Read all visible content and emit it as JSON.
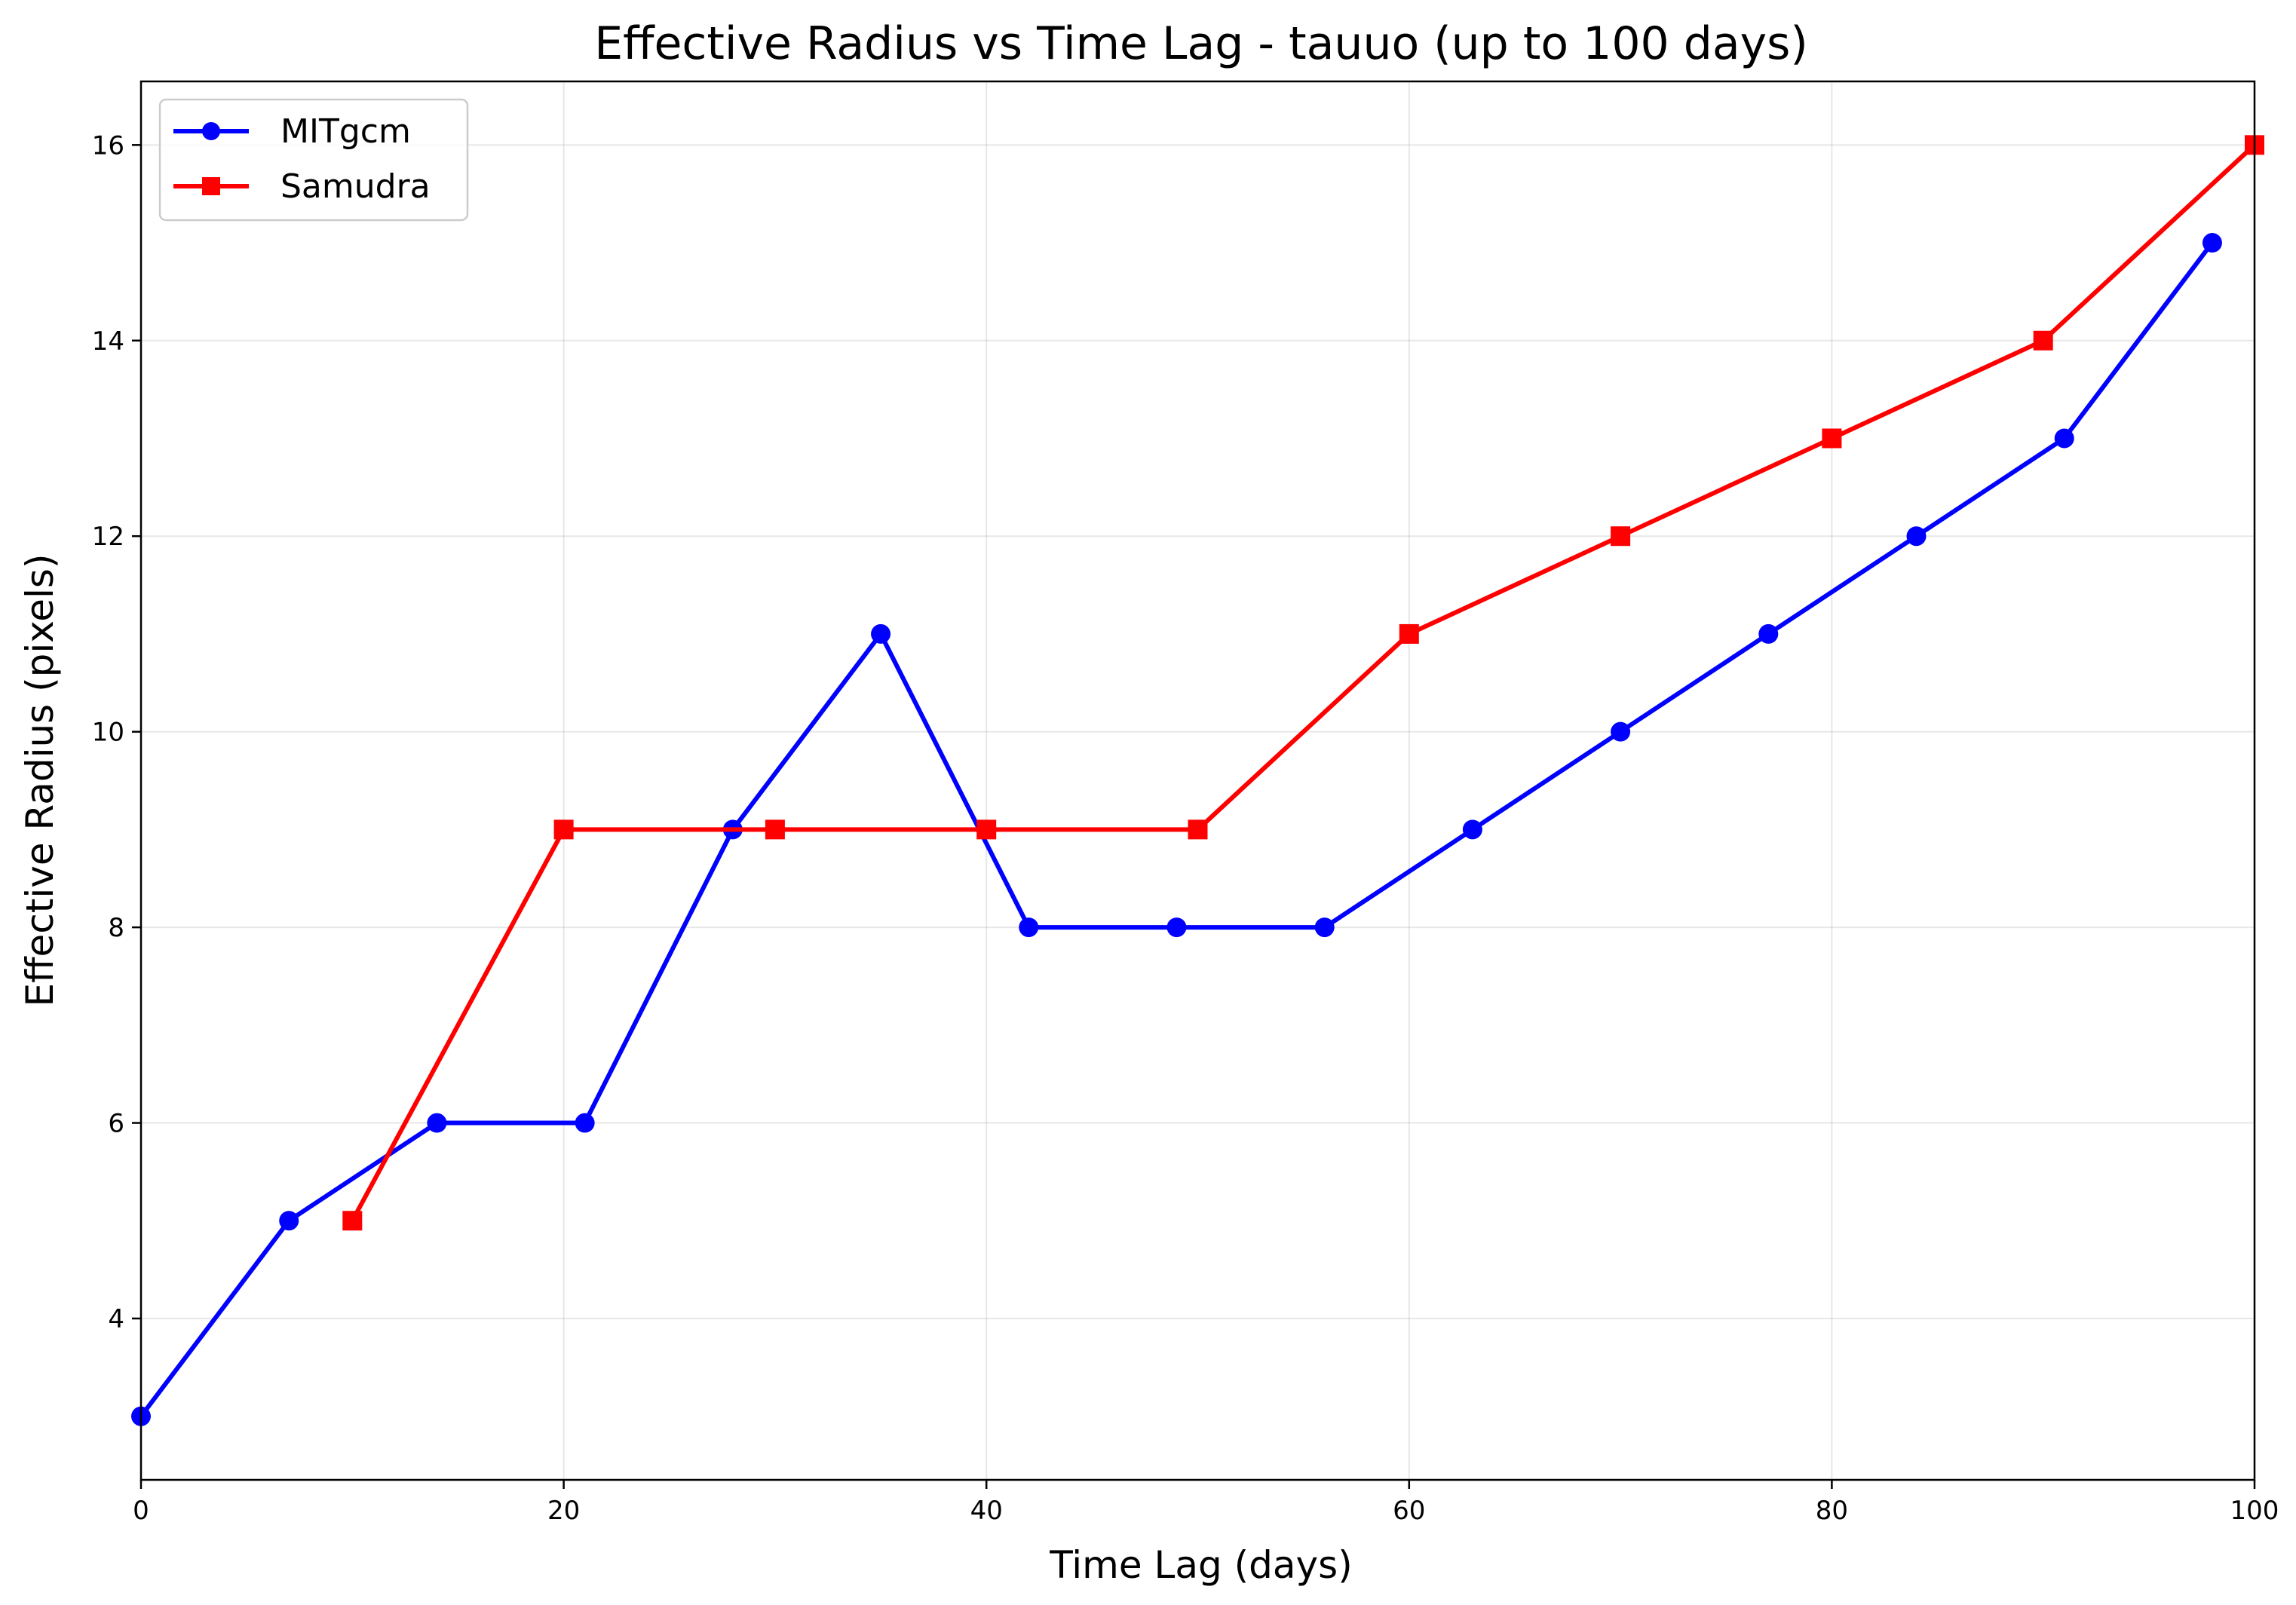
{
  "chart_data": {
    "type": "line",
    "title": "Effective Radius vs Time Lag - tauuo (up to 100 days)",
    "xlabel": "Time Lag (days)",
    "ylabel": "Effective Radius (pixels)",
    "xlim": [
      0,
      100
    ],
    "ylim": [
      2.35,
      16.65
    ],
    "xticks": [
      0,
      20,
      40,
      60,
      80,
      100
    ],
    "yticks": [
      4,
      6,
      8,
      10,
      12,
      14,
      16
    ],
    "grid": true,
    "legend_position": "top-left",
    "series": [
      {
        "name": "MITgcm",
        "color": "#0000ff",
        "marker": "circle",
        "x": [
          0,
          7,
          14,
          21,
          28,
          35,
          42,
          49,
          56,
          63,
          70,
          77,
          84,
          91,
          98
        ],
        "y": [
          3,
          5,
          6,
          6,
          9,
          11,
          8,
          8,
          8,
          9,
          10,
          11,
          12,
          13,
          15
        ]
      },
      {
        "name": "Samudra",
        "color": "#ff0000",
        "marker": "square",
        "x": [
          10,
          20,
          30,
          40,
          50,
          60,
          70,
          80,
          90,
          100
        ],
        "y": [
          5,
          9,
          9,
          9,
          9,
          11,
          12,
          13,
          14,
          16
        ]
      }
    ]
  }
}
